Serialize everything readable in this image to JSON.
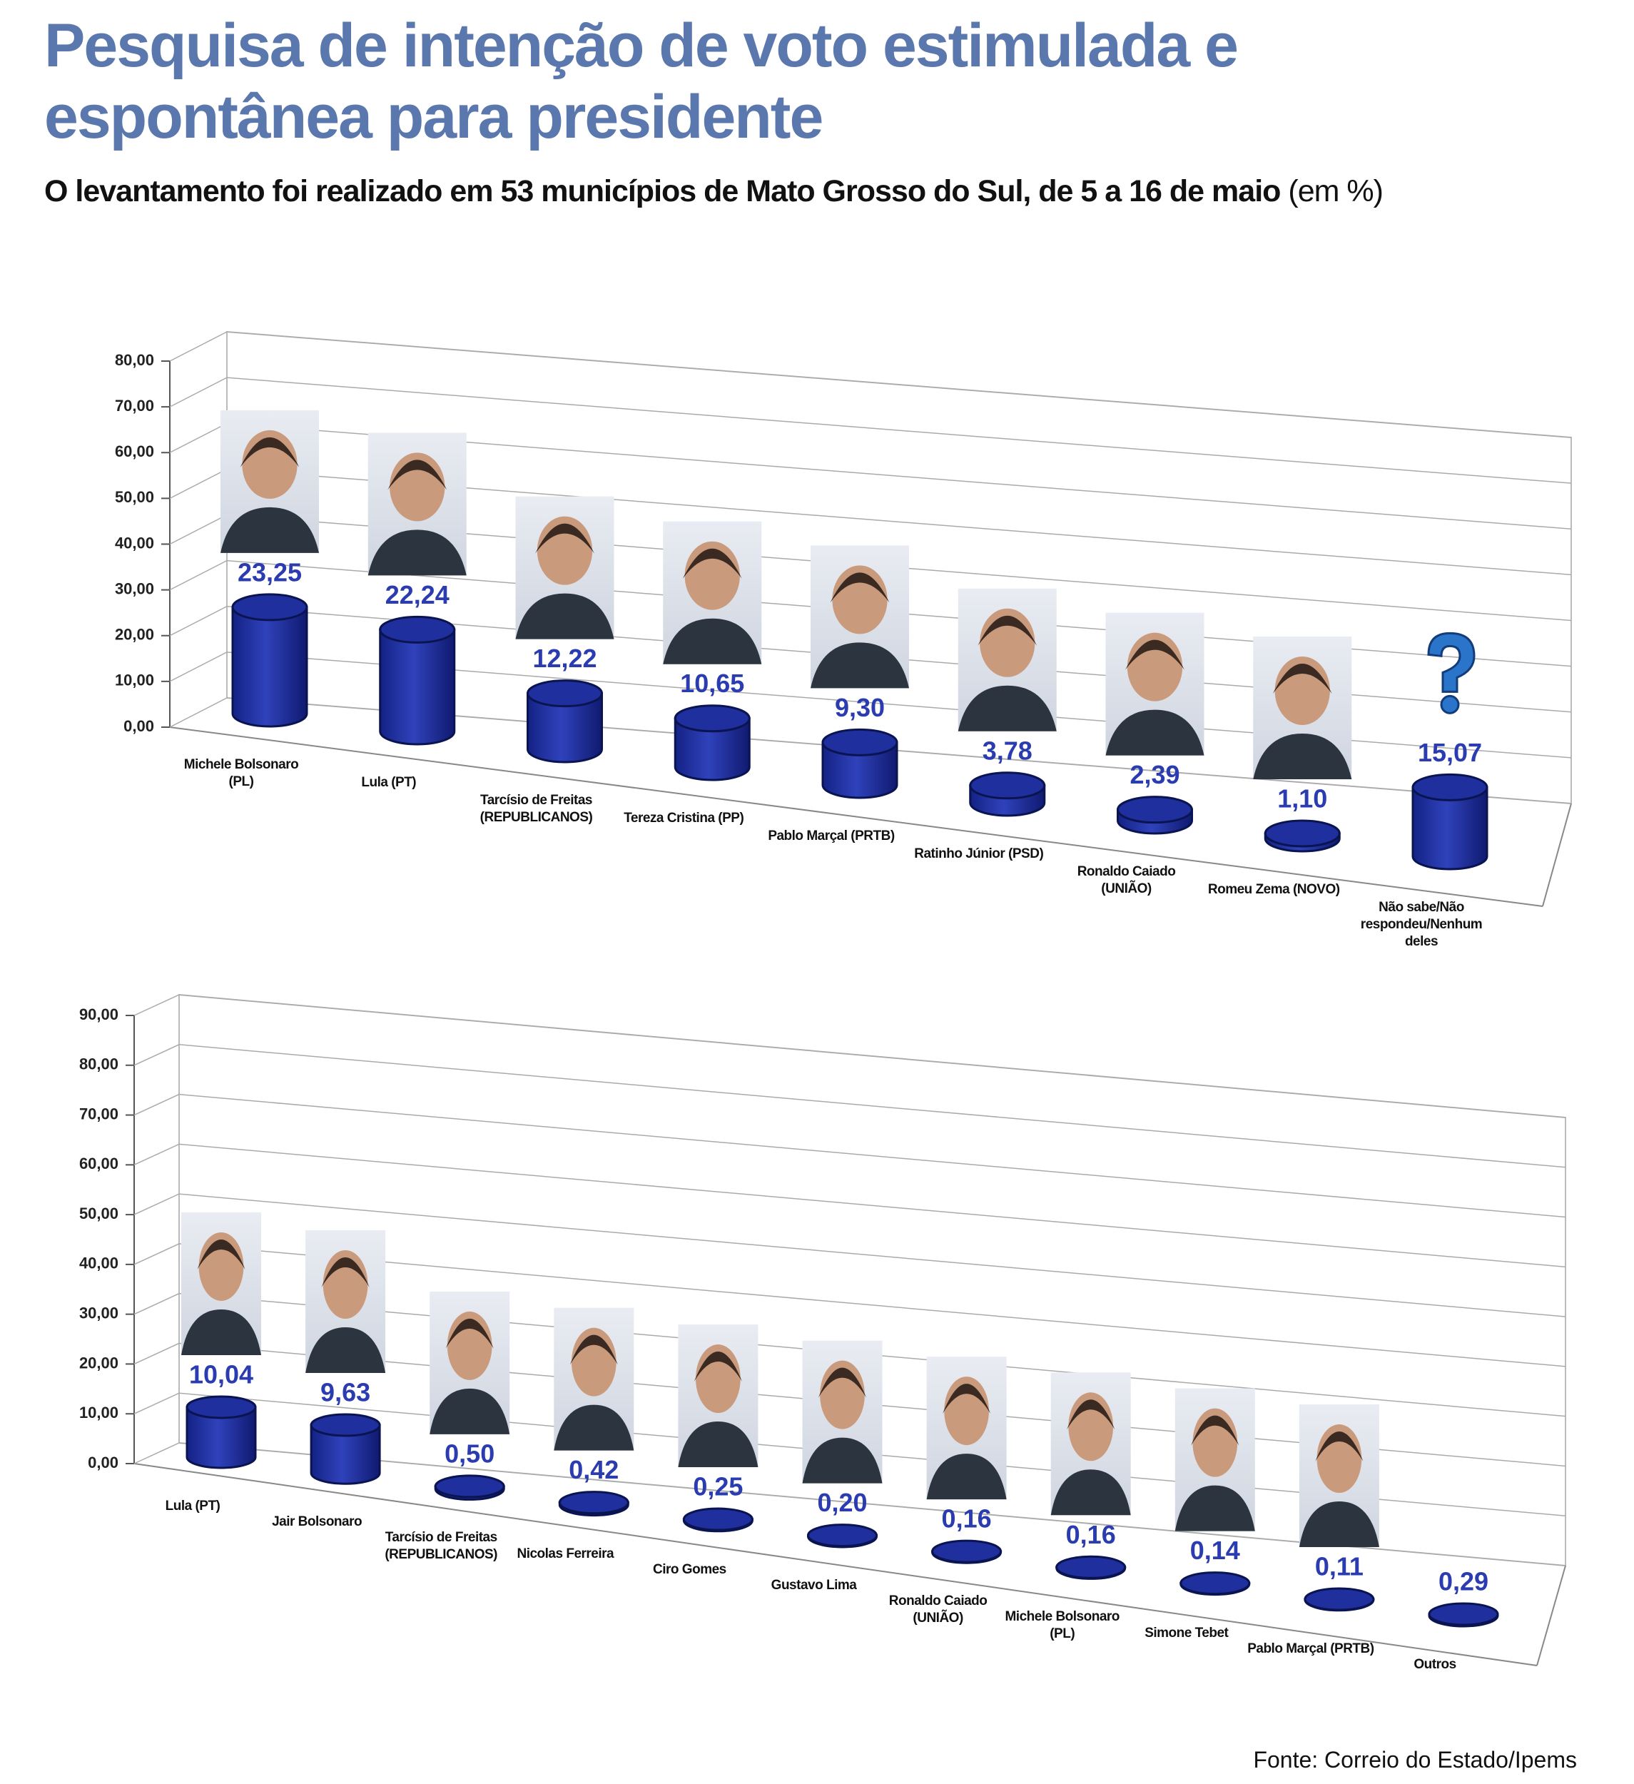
{
  "title": "Pesquisa de intenção de voto estimulada e espontânea para presidente",
  "subtitle": "O levantamento foi realizado em 53 municípios de Mato Grosso do Sul, de 5 a 16 de maio",
  "unit": "(em %)",
  "source": "Fonte: Correio do Estado/Ipems",
  "chart_data": [
    {
      "type": "bar",
      "color": "#1f2f9e",
      "grid": true,
      "categories": [
        "Michele Bolsonaro (PL)",
        "Lula (PT)",
        "Tarcísio de Freitas (REPUBLICANOS)",
        "Tereza Cristina (PP)",
        "Pablo Marçal (PRTB)",
        "Ratinho Júnior (PSD)",
        "Ronaldo Caiado (UNIÃO)",
        "Romeu Zema (NOVO)",
        "Não sabe/Não respondeu/Nenhum deles"
      ],
      "values": [
        23.25,
        22.24,
        12.22,
        10.65,
        9.3,
        3.78,
        2.39,
        1.1,
        15.07
      ],
      "value_labels": [
        "23,25",
        "22,24",
        "12,22",
        "10,65",
        "9,30",
        "3,78",
        "2,39",
        "1,10",
        "15,07"
      ],
      "ylim": [
        0,
        80
      ],
      "yticks": [
        {
          "value": 0,
          "label": "0,00"
        },
        {
          "value": 10,
          "label": "10,00"
        },
        {
          "value": 20,
          "label": "20,00"
        },
        {
          "value": 30,
          "label": "30,00"
        },
        {
          "value": 40,
          "label": "40,00"
        },
        {
          "value": 50,
          "label": "50,00"
        },
        {
          "value": 60,
          "label": "60,00"
        },
        {
          "value": 70,
          "label": "70,00"
        },
        {
          "value": 80,
          "label": "80,00"
        }
      ]
    },
    {
      "type": "bar",
      "color": "#1f2f9e",
      "grid": true,
      "categories": [
        "Lula (PT)",
        "Jair Bolsonaro",
        "Tarcísio de Freitas (REPUBLICANOS)",
        "Nicolas Ferreira",
        "Ciro Gomes",
        "Gustavo Lima",
        "Ronaldo Caiado (UNIÃO)",
        "Michele Bolsonaro (PL)",
        "Simone Tebet",
        "Pablo Marçal (PRTB)",
        "Outros"
      ],
      "values": [
        10.04,
        9.63,
        0.5,
        0.42,
        0.25,
        0.2,
        0.16,
        0.16,
        0.14,
        0.11,
        0.29
      ],
      "value_labels": [
        "10,04",
        "9,63",
        "0,50",
        "0,42",
        "0,25",
        "0,20",
        "0,16",
        "0,16",
        "0,14",
        "0,11",
        "0,29"
      ],
      "ylim": [
        0,
        90
      ],
      "yticks": [
        {
          "value": 0,
          "label": "0,00"
        },
        {
          "value": 10,
          "label": "10,00"
        },
        {
          "value": 20,
          "label": "20,00"
        },
        {
          "value": 30,
          "label": "30,00"
        },
        {
          "value": 40,
          "label": "40,00"
        },
        {
          "value": 50,
          "label": "50,00"
        },
        {
          "value": 60,
          "label": "60,00"
        },
        {
          "value": 70,
          "label": "70,00"
        },
        {
          "value": 80,
          "label": "80,00"
        },
        {
          "value": 90,
          "label": "90,00"
        }
      ]
    }
  ]
}
